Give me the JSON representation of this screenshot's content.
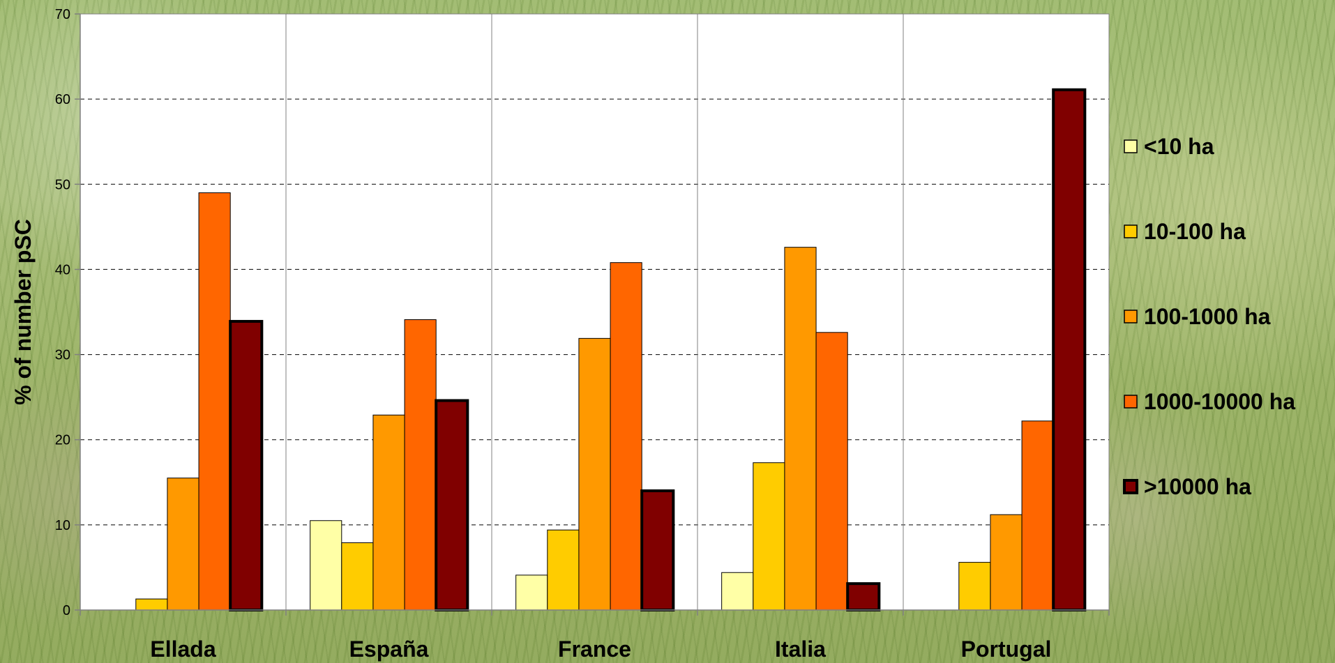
{
  "chart_data": {
    "type": "bar",
    "title": "",
    "xlabel": "",
    "ylabel": "% of number pSC",
    "ylim": [
      0,
      70
    ],
    "yticks": [
      0,
      10,
      20,
      30,
      40,
      50,
      60,
      70
    ],
    "grid": true,
    "legend_position": "right",
    "categories": [
      "Ellada",
      "España",
      "France",
      "Italia",
      "Portugal"
    ],
    "series": [
      {
        "name": "<10 ha",
        "color": "#FFFFA6",
        "values": [
          0,
          10.5,
          4.1,
          4.4,
          0
        ]
      },
      {
        "name": "10-100 ha",
        "color": "#FFCC00",
        "values": [
          1.3,
          7.9,
          9.4,
          17.3,
          5.6
        ]
      },
      {
        "name": "100-1000 ha",
        "color": "#FF9900",
        "values": [
          15.5,
          22.9,
          31.9,
          42.6,
          11.2
        ]
      },
      {
        "name": "1000-10000 ha",
        "color": "#FF6600",
        "values": [
          49.0,
          34.1,
          40.8,
          32.6,
          22.2
        ]
      },
      {
        "name": ">10000 ha",
        "color": "#800000",
        "values": [
          33.9,
          24.6,
          14.0,
          3.1,
          61.1
        ]
      }
    ]
  }
}
